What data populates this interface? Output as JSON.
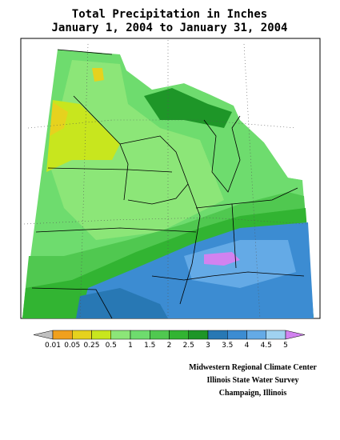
{
  "title": [
    "Total Precipitation in Inches",
    "January 1, 2004 to January 31, 2004"
  ],
  "legend": {
    "breaks": [
      0.01,
      0.05,
      0.25,
      0.5,
      1,
      1.5,
      2,
      2.5,
      3,
      3.5,
      4,
      4.5,
      5
    ],
    "colors": [
      "#c0c0c0",
      "#f0a01e",
      "#e6d21e",
      "#c8e61e",
      "#8ce678",
      "#6edc6e",
      "#50c850",
      "#32b432",
      "#1e9628",
      "#2878b4",
      "#3c8cd2",
      "#64aae6",
      "#a0d2f0",
      "#d282f0"
    ]
  },
  "credits": [
    "Midwestern Regional Climate Center",
    "Illinois State Water Survey",
    "Champaign, Illinois"
  ]
}
